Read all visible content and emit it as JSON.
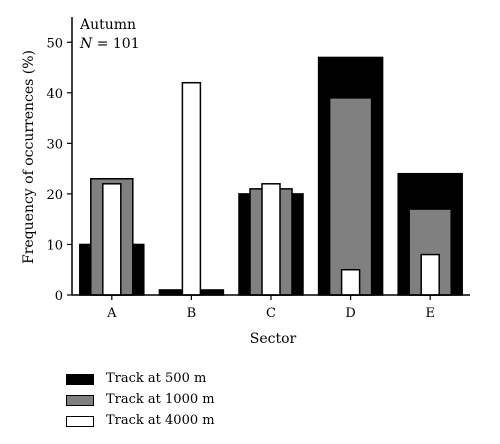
{
  "chart_data": {
    "type": "bar",
    "categories": [
      "A",
      "B",
      "C",
      "D",
      "E"
    ],
    "series": [
      {
        "name": "Track at 500 m",
        "color": "#000000",
        "values": [
          10,
          1,
          20,
          47,
          24
        ]
      },
      {
        "name": "Track at 1000 m",
        "color": "#808080",
        "values": [
          23,
          0,
          21,
          39,
          17
        ]
      },
      {
        "name": "Track at 4000 m",
        "color": "#ffffff",
        "values": [
          22,
          42,
          22,
          5,
          8
        ]
      }
    ],
    "annotation": {
      "season": "Autumn",
      "n_label": "N",
      "n_value": "= 101"
    },
    "xlabel": "Sector",
    "ylabel": "Frequency of occurrences (%)",
    "ylim": [
      0,
      55
    ],
    "yticks": [
      0,
      10,
      20,
      30,
      40,
      50
    ],
    "legend_position": "bottom-left",
    "grid": false
  }
}
